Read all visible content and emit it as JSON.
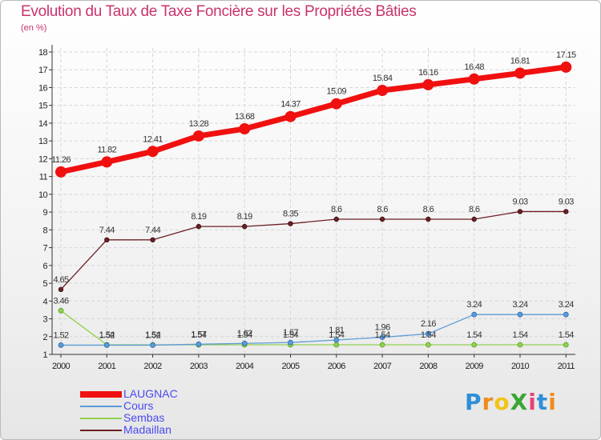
{
  "title": "Evolution du Taux de Taxe Foncière sur les Propriétés Bâties",
  "unit_label": "(en %)",
  "logo": {
    "text": "ProXiti",
    "colors": [
      "#2f8fd8",
      "#f08a1c",
      "#f0c419",
      "#3aa635",
      "#e8417a",
      "#2f8fd8",
      "#f08a1c"
    ]
  },
  "chart_data": {
    "type": "line",
    "title": "Evolution du Taux de Taxe Foncière sur les Propriétés Bâties",
    "ylabel": "(en %)",
    "xlabel": "",
    "x": [
      "2000",
      "2001",
      "2002",
      "2003",
      "2004",
      "2005",
      "2006",
      "2007",
      "2008",
      "2009",
      "2010",
      "2011"
    ],
    "ylim": [
      1,
      18
    ],
    "yticks": [
      "1",
      "2",
      "3",
      "4",
      "5",
      "6",
      "7",
      "8",
      "9",
      "10",
      "11",
      "12",
      "13",
      "14",
      "15",
      "16",
      "17",
      "18"
    ],
    "grid": true,
    "legend_position": "bottom-left",
    "series": [
      {
        "name": "LAUGNAC",
        "color": "#f01010",
        "values": [
          11.26,
          11.82,
          12.41,
          13.28,
          13.68,
          14.37,
          15.09,
          15.84,
          16.16,
          16.48,
          16.81,
          17.15
        ],
        "labels": [
          "11.26",
          "11.82",
          "12.41",
          "13.28",
          "13.68",
          "14.37",
          "15.09",
          "15.84",
          "16.16",
          "16.48",
          "16.81",
          "17.15"
        ]
      },
      {
        "name": "Cours",
        "color": "#5b9bd5",
        "values": [
          1.52,
          1.52,
          1.52,
          1.57,
          1.62,
          1.67,
          1.81,
          1.96,
          2.16,
          3.24,
          3.24,
          3.24
        ],
        "labels": [
          "1.52",
          "1.52",
          "1.52",
          "1.57",
          "1.62",
          "1.67",
          "1.81",
          "1.96",
          "2.16",
          "3.24",
          "3.24",
          "3.24"
        ]
      },
      {
        "name": "Sembas",
        "color": "#92d050",
        "values": [
          3.46,
          1.54,
          1.54,
          1.54,
          1.54,
          1.54,
          1.54,
          1.54,
          1.54,
          1.54,
          1.54,
          1.54
        ],
        "labels": [
          "3.46",
          "1.54",
          "1.54",
          "1.54",
          "1.54",
          "1.54",
          "1.54",
          "1.54",
          "1.54",
          "1.54",
          "1.54",
          "1.54"
        ]
      },
      {
        "name": "Madaillan",
        "color": "#6b1f24",
        "values": [
          4.65,
          7.44,
          7.44,
          8.19,
          8.19,
          8.35,
          8.6,
          8.6,
          8.6,
          8.6,
          9.03,
          9.03
        ],
        "labels": [
          "4.65",
          "7.44",
          "7.44",
          "8.19",
          "8.19",
          "8.35",
          "8.6",
          "8.6",
          "8.6",
          "8.6",
          "9.03",
          "9.03"
        ]
      }
    ]
  }
}
